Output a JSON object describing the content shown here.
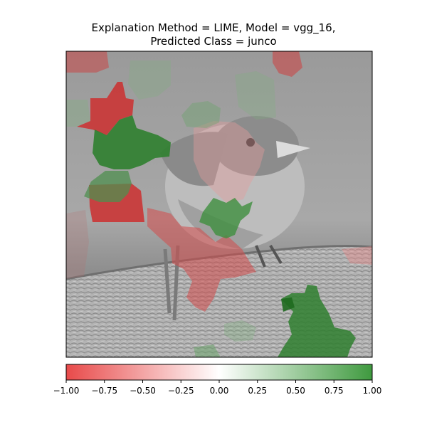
{
  "figure": {
    "title_line1": "Explanation Method = LIME, Model = vgg_16,",
    "title_line2": "Predicted Class = junco"
  },
  "image": {
    "subject": "junco bird on a branch, grayscale photo",
    "overlay_colormap": "red-white-green"
  },
  "colorbar": {
    "min": -1.0,
    "max": 1.0,
    "negative_color": "#e03030",
    "positive_color": "#2e8b2e",
    "ticks": [
      {
        "value": -1.0,
        "label": "−1.00"
      },
      {
        "value": -0.75,
        "label": "−0.75"
      },
      {
        "value": -0.5,
        "label": "−0.50"
      },
      {
        "value": -0.25,
        "label": "−0.25"
      },
      {
        "value": 0.0,
        "label": "0.00"
      },
      {
        "value": 0.25,
        "label": "0.25"
      },
      {
        "value": 0.5,
        "label": "0.50"
      },
      {
        "value": 0.75,
        "label": "0.75"
      },
      {
        "value": 1.0,
        "label": "1.00"
      }
    ]
  }
}
